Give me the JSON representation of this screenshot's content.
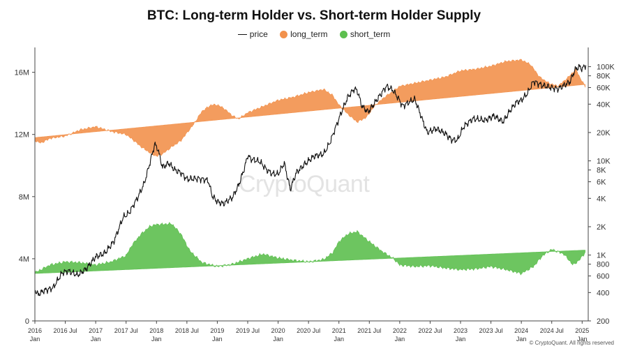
{
  "chart_data": {
    "type": "area",
    "title": "BTC: Long-term Holder vs. Short-term Holder Supply",
    "legend": [
      "price",
      "long_term",
      "short_term"
    ],
    "legend_position": "top-center",
    "colors": {
      "price": "#111111",
      "long_term": "#f2914c",
      "short_term": "#5dbf4f",
      "watermark": "#e3e3e3"
    },
    "x_labels": [
      {
        "t": 2016.0,
        "line1": "2016",
        "line2": "Jan"
      },
      {
        "t": 2016.5,
        "line1": "2016 Jul",
        "line2": ""
      },
      {
        "t": 2017.0,
        "line1": "2017",
        "line2": "Jan"
      },
      {
        "t": 2017.5,
        "line1": "2017 Jul",
        "line2": ""
      },
      {
        "t": 2018.0,
        "line1": "2018",
        "line2": "Jan"
      },
      {
        "t": 2018.5,
        "line1": "2018 Jul",
        "line2": ""
      },
      {
        "t": 2019.0,
        "line1": "2019",
        "line2": "Jan"
      },
      {
        "t": 2019.5,
        "line1": "2019 Jul",
        "line2": ""
      },
      {
        "t": 2020.0,
        "line1": "2020",
        "line2": "Jan"
      },
      {
        "t": 2020.5,
        "line1": "2020 Jul",
        "line2": ""
      },
      {
        "t": 2021.0,
        "line1": "2021",
        "line2": "Jan"
      },
      {
        "t": 2021.5,
        "line1": "2021 Jul",
        "line2": ""
      },
      {
        "t": 2022.0,
        "line1": "2022",
        "line2": "Jan"
      },
      {
        "t": 2022.5,
        "line1": "2022 Jul",
        "line2": ""
      },
      {
        "t": 2023.0,
        "line1": "2023",
        "line2": "Jan"
      },
      {
        "t": 2023.5,
        "line1": "2023 Jul",
        "line2": ""
      },
      {
        "t": 2024.0,
        "line1": "2024",
        "line2": "Jan"
      },
      {
        "t": 2024.5,
        "line1": "2024 Jul",
        "line2": ""
      },
      {
        "t": 2025.0,
        "line1": "2025",
        "line2": "Jan"
      }
    ],
    "xlim": [
      2016.0,
      2025.1
    ],
    "y_left": {
      "ticks": [
        0,
        4000000,
        8000000,
        12000000,
        16000000
      ],
      "labels": [
        "0",
        "4M",
        "8M",
        "12M",
        "16M"
      ],
      "lim": [
        0,
        17600000
      ]
    },
    "y_right": {
      "scale": "log",
      "lim": [
        200,
        160000
      ],
      "ticks": [
        {
          "v": 100000,
          "label": "100K"
        },
        {
          "v": 80000,
          "label": "80K"
        },
        {
          "v": 60000,
          "label": "60K"
        },
        {
          "v": 40000,
          "label": "40K"
        },
        {
          "v": 20000,
          "label": "20K"
        },
        {
          "v": 10000,
          "label": "10K"
        },
        {
          "v": 8000,
          "label": "8K"
        },
        {
          "v": 6000,
          "label": "6K"
        },
        {
          "v": 4000,
          "label": "4K"
        },
        {
          "v": 2000,
          "label": "2K"
        },
        {
          "v": 1000,
          "label": "1K"
        },
        {
          "v": 800,
          "label": "800"
        },
        {
          "v": 600,
          "label": "600"
        },
        {
          "v": 400,
          "label": "400"
        },
        {
          "v": 200,
          "label": "200"
        }
      ]
    },
    "long_term_baseline": {
      "start": [
        2016.0,
        11800000
      ],
      "end": [
        2025.0,
        15200000
      ]
    },
    "short_term_baseline": {
      "start": [
        2016.0,
        3050000
      ],
      "end": [
        2025.0,
        4550000
      ]
    },
    "long_term": [
      [
        2016.0,
        11600000
      ],
      [
        2016.1,
        11450000
      ],
      [
        2016.25,
        11750000
      ],
      [
        2016.5,
        11900000
      ],
      [
        2016.75,
        12300000
      ],
      [
        2017.0,
        12500000
      ],
      [
        2017.25,
        12200000
      ],
      [
        2017.5,
        12000000
      ],
      [
        2017.6,
        11700000
      ],
      [
        2017.75,
        11200000
      ],
      [
        2017.9,
        10800000
      ],
      [
        2018.0,
        10600000
      ],
      [
        2018.1,
        10750000
      ],
      [
        2018.25,
        11200000
      ],
      [
        2018.4,
        11600000
      ],
      [
        2018.6,
        12600000
      ],
      [
        2018.75,
        13500000
      ],
      [
        2018.9,
        13900000
      ],
      [
        2019.0,
        13900000
      ],
      [
        2019.1,
        13700000
      ],
      [
        2019.25,
        13200000
      ],
      [
        2019.35,
        13000000
      ],
      [
        2019.5,
        13400000
      ],
      [
        2019.75,
        13800000
      ],
      [
        2020.0,
        14200000
      ],
      [
        2020.25,
        14400000
      ],
      [
        2020.5,
        14700000
      ],
      [
        2020.75,
        14900000
      ],
      [
        2020.9,
        14500000
      ],
      [
        2021.0,
        13900000
      ],
      [
        2021.15,
        13300000
      ],
      [
        2021.3,
        12800000
      ],
      [
        2021.45,
        13100000
      ],
      [
        2021.6,
        13900000
      ],
      [
        2021.75,
        14400000
      ],
      [
        2021.9,
        14800000
      ],
      [
        2022.0,
        15100000
      ],
      [
        2022.25,
        15300000
      ],
      [
        2022.5,
        15500000
      ],
      [
        2022.75,
        15700000
      ],
      [
        2023.0,
        16100000
      ],
      [
        2023.25,
        16200000
      ],
      [
        2023.5,
        16400000
      ],
      [
        2023.75,
        16700000
      ],
      [
        2024.0,
        16800000
      ],
      [
        2024.15,
        16500000
      ],
      [
        2024.3,
        15700000
      ],
      [
        2024.45,
        15300000
      ],
      [
        2024.6,
        15100000
      ],
      [
        2024.75,
        15600000
      ],
      [
        2024.9,
        16200000
      ],
      [
        2024.97,
        15600000
      ],
      [
        2025.05,
        15100000
      ]
    ],
    "short_term": [
      [
        2016.0,
        3100000
      ],
      [
        2016.25,
        3600000
      ],
      [
        2016.5,
        3800000
      ],
      [
        2016.75,
        3750000
      ],
      [
        2017.0,
        3600000
      ],
      [
        2017.25,
        3800000
      ],
      [
        2017.5,
        4200000
      ],
      [
        2017.6,
        4900000
      ],
      [
        2017.75,
        5600000
      ],
      [
        2017.9,
        6100000
      ],
      [
        2018.0,
        6200000
      ],
      [
        2018.25,
        6250000
      ],
      [
        2018.4,
        5600000
      ],
      [
        2018.55,
        4500000
      ],
      [
        2018.75,
        3750000
      ],
      [
        2019.0,
        3500000
      ],
      [
        2019.25,
        3650000
      ],
      [
        2019.5,
        4000000
      ],
      [
        2019.75,
        4300000
      ],
      [
        2020.0,
        4050000
      ],
      [
        2020.25,
        3900000
      ],
      [
        2020.5,
        3800000
      ],
      [
        2020.75,
        3950000
      ],
      [
        2020.9,
        4400000
      ],
      [
        2021.0,
        5100000
      ],
      [
        2021.15,
        5600000
      ],
      [
        2021.3,
        5750000
      ],
      [
        2021.5,
        5100000
      ],
      [
        2021.7,
        4500000
      ],
      [
        2021.9,
        4000000
      ],
      [
        2022.0,
        3600000
      ],
      [
        2022.25,
        3500000
      ],
      [
        2022.5,
        3550000
      ],
      [
        2022.75,
        3400000
      ],
      [
        2023.0,
        3300000
      ],
      [
        2023.25,
        3350000
      ],
      [
        2023.5,
        3500000
      ],
      [
        2023.75,
        3300000
      ],
      [
        2024.0,
        3050000
      ],
      [
        2024.2,
        3500000
      ],
      [
        2024.35,
        4200000
      ],
      [
        2024.5,
        4600000
      ],
      [
        2024.7,
        4300000
      ],
      [
        2024.85,
        3600000
      ],
      [
        2024.95,
        3900000
      ],
      [
        2025.05,
        4400000
      ]
    ],
    "price": [
      [
        2016.0,
        430
      ],
      [
        2016.05,
        380
      ],
      [
        2016.15,
        420
      ],
      [
        2016.3,
        450
      ],
      [
        2016.45,
        650
      ],
      [
        2016.55,
        680
      ],
      [
        2016.7,
        610
      ],
      [
        2016.85,
        720
      ],
      [
        2017.0,
        960
      ],
      [
        2017.15,
        1050
      ],
      [
        2017.3,
        1400
      ],
      [
        2017.45,
        2500
      ],
      [
        2017.55,
        2800
      ],
      [
        2017.7,
        4200
      ],
      [
        2017.8,
        5800
      ],
      [
        2017.9,
        10000
      ],
      [
        2017.97,
        15000
      ],
      [
        2018.02,
        13500
      ],
      [
        2018.1,
        8500
      ],
      [
        2018.2,
        9500
      ],
      [
        2018.3,
        8000
      ],
      [
        2018.4,
        7500
      ],
      [
        2018.5,
        6400
      ],
      [
        2018.7,
        6500
      ],
      [
        2018.85,
        6200
      ],
      [
        2018.92,
        4200
      ],
      [
        2019.0,
        3700
      ],
      [
        2019.1,
        3500
      ],
      [
        2019.25,
        4100
      ],
      [
        2019.35,
        5500
      ],
      [
        2019.45,
        8500
      ],
      [
        2019.5,
        11500
      ],
      [
        2019.55,
        10500
      ],
      [
        2019.7,
        9800
      ],
      [
        2019.8,
        8200
      ],
      [
        2019.9,
        7300
      ],
      [
        2020.0,
        7200
      ],
      [
        2020.1,
        9500
      ],
      [
        2020.2,
        5000
      ],
      [
        2020.3,
        7500
      ],
      [
        2020.45,
        9400
      ],
      [
        2020.6,
        11300
      ],
      [
        2020.75,
        11800
      ],
      [
        2020.85,
        15500
      ],
      [
        2020.95,
        23000
      ],
      [
        2021.05,
        34000
      ],
      [
        2021.15,
        48000
      ],
      [
        2021.25,
        58000
      ],
      [
        2021.3,
        56000
      ],
      [
        2021.38,
        38000
      ],
      [
        2021.48,
        33000
      ],
      [
        2021.55,
        38000
      ],
      [
        2021.65,
        47000
      ],
      [
        2021.78,
        62000
      ],
      [
        2021.88,
        57000
      ],
      [
        2021.97,
        47000
      ],
      [
        2022.05,
        38000
      ],
      [
        2022.15,
        42000
      ],
      [
        2022.25,
        45000
      ],
      [
        2022.35,
        30000
      ],
      [
        2022.45,
        20000
      ],
      [
        2022.6,
        22000
      ],
      [
        2022.75,
        19500
      ],
      [
        2022.85,
        16800
      ],
      [
        2022.95,
        16600
      ],
      [
        2023.05,
        23000
      ],
      [
        2023.2,
        28000
      ],
      [
        2023.4,
        27000
      ],
      [
        2023.55,
        30000
      ],
      [
        2023.7,
        26000
      ],
      [
        2023.82,
        34500
      ],
      [
        2023.92,
        42000
      ],
      [
        2024.0,
        44000
      ],
      [
        2024.1,
        52000
      ],
      [
        2024.2,
        70000
      ],
      [
        2024.35,
        63000
      ],
      [
        2024.5,
        60000
      ],
      [
        2024.6,
        58000
      ],
      [
        2024.7,
        63000
      ],
      [
        2024.8,
        69000
      ],
      [
        2024.88,
        92000
      ],
      [
        2024.95,
        100000
      ],
      [
        2025.0,
        95000
      ],
      [
        2025.06,
        104000
      ]
    ],
    "watermark": "CryptoQuant",
    "credit": "© CryptoQuant. All rights reserved"
  }
}
